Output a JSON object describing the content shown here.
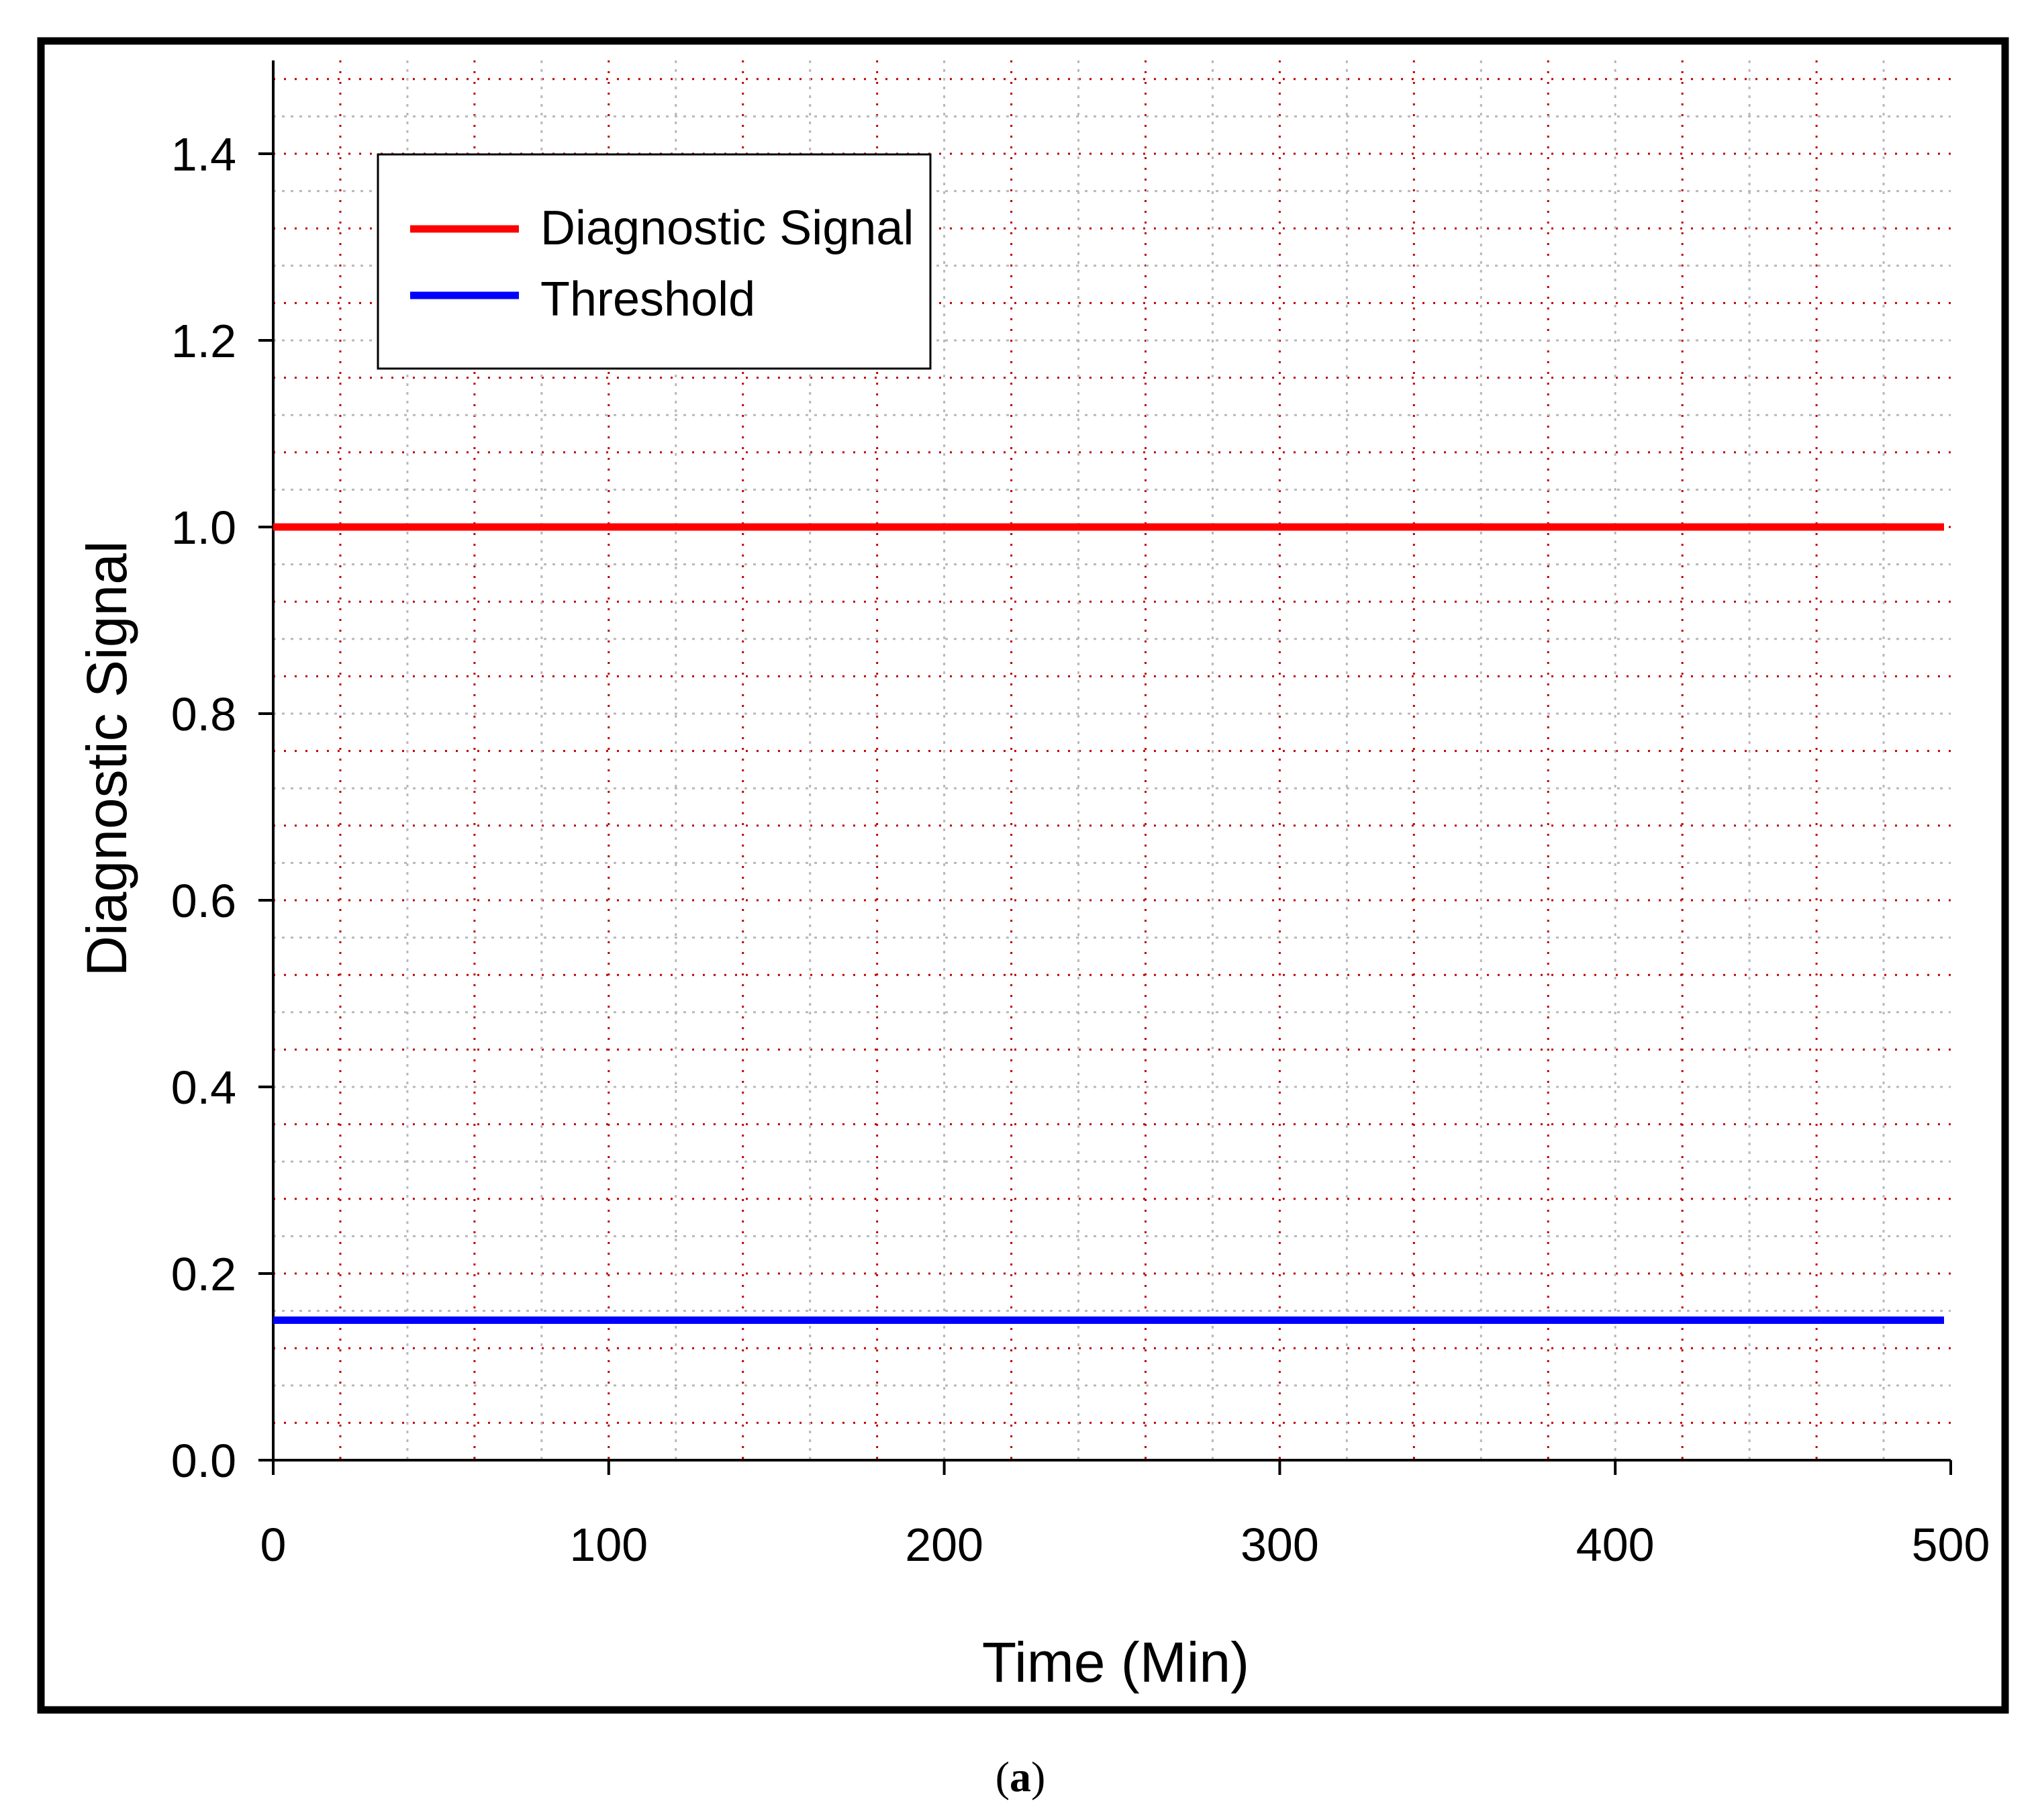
{
  "caption": {
    "label": "a",
    "open": "(",
    "close": ")"
  },
  "colors": {
    "diagnostic_signal": "#ff0000",
    "threshold": "#0000ff",
    "major_grid": "#b8b8b8",
    "minor_grid": "#c00000",
    "frame": "#000000"
  },
  "chart_data": {
    "type": "line",
    "title": "",
    "xlabel": "Time (Min)",
    "ylabel": "Diagnostic Signal",
    "xlim": [
      0,
      500
    ],
    "ylim": [
      0,
      1.5
    ],
    "x_ticks": [
      "0",
      "100",
      "200",
      "300",
      "400",
      "500"
    ],
    "y_ticks": [
      "0.0",
      "0.2",
      "0.4",
      "0.6",
      "0.8",
      "1.0",
      "1.2",
      "1.4"
    ],
    "grid": true,
    "legend_position": "top-left",
    "series": [
      {
        "name": "Diagnostic Signal",
        "color": "#ff0000",
        "x": [
          0,
          498
        ],
        "y": [
          1.0,
          1.0
        ]
      },
      {
        "name": "Threshold",
        "color": "#0000ff",
        "x": [
          0,
          498
        ],
        "y": [
          0.15,
          0.15
        ]
      }
    ]
  }
}
